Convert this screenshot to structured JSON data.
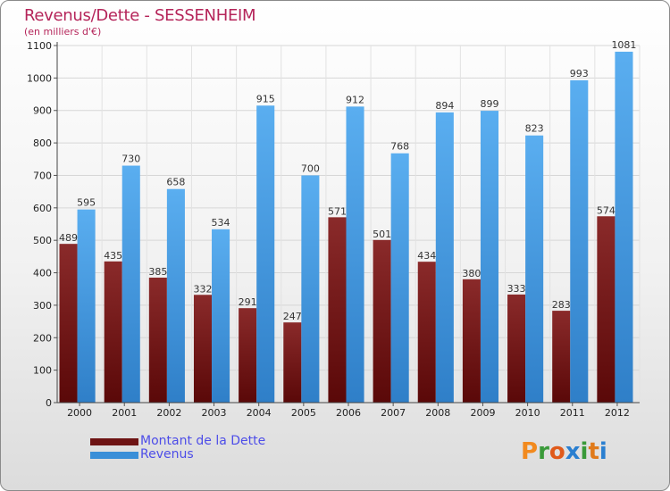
{
  "header": {
    "title": "Revenus/Dette - SESSENHEIM",
    "subtitle": "(en milliers d'€)"
  },
  "colors": {
    "debt": "#6e1414",
    "revenue": "#3a8fd8",
    "title": "#b5255a",
    "legend_text": "#4d4de8"
  },
  "chart_data": {
    "type": "bar",
    "title": "Revenus/Dette - SESSENHEIM",
    "ylabel": "(en milliers d'€)",
    "xlabel": "",
    "categories": [
      "2000",
      "2001",
      "2002",
      "2003",
      "2004",
      "2005",
      "2006",
      "2007",
      "2008",
      "2009",
      "2010",
      "2011",
      "2012"
    ],
    "series": [
      {
        "name": "Montant de la Dette",
        "values": [
          489,
          435,
          385,
          332,
          291,
          247,
          571,
          501,
          434,
          380,
          333,
          283,
          574
        ]
      },
      {
        "name": "Revenus",
        "values": [
          595,
          730,
          658,
          534,
          915,
          700,
          912,
          768,
          894,
          899,
          823,
          993,
          1081
        ]
      }
    ],
    "ylim": [
      0,
      1100
    ],
    "yticks": [
      0,
      100,
      200,
      300,
      400,
      500,
      600,
      700,
      800,
      900,
      1000,
      1100
    ],
    "grid": true,
    "legend_position": "bottom-left"
  },
  "legend": {
    "items": [
      {
        "label": "Montant de la Dette"
      },
      {
        "label": "Revenus"
      }
    ]
  },
  "logo": {
    "text": "Proxiti",
    "letters": [
      "P",
      "r",
      "o",
      "x",
      "i",
      "t",
      "i"
    ],
    "letter_colors": [
      "#f28a1e",
      "#3a9a3a",
      "#e05a1a",
      "#2a7fd0",
      "#3a9a3a",
      "#e07a1a",
      "#2a7fd0"
    ]
  }
}
